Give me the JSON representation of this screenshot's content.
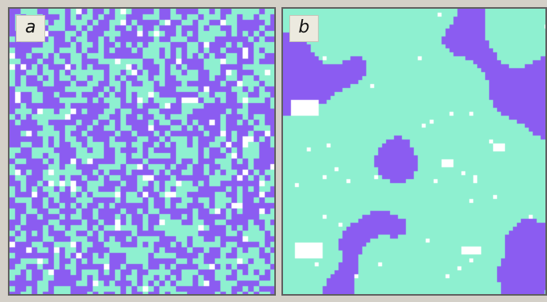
{
  "panels": [
    {
      "label": "a",
      "pattern": "fine-random-grid",
      "colors": {
        "primary": "#8b5cf1",
        "secondary": "#8ef0d0",
        "highlight": "#ffffff"
      }
    },
    {
      "label": "b",
      "pattern": "coarse-clustered-regions",
      "colors": {
        "primary": "#8b5cf1",
        "secondary": "#8ef0d0",
        "highlight": "#ffffff"
      }
    }
  ],
  "frame_color": "#d4d0c8"
}
